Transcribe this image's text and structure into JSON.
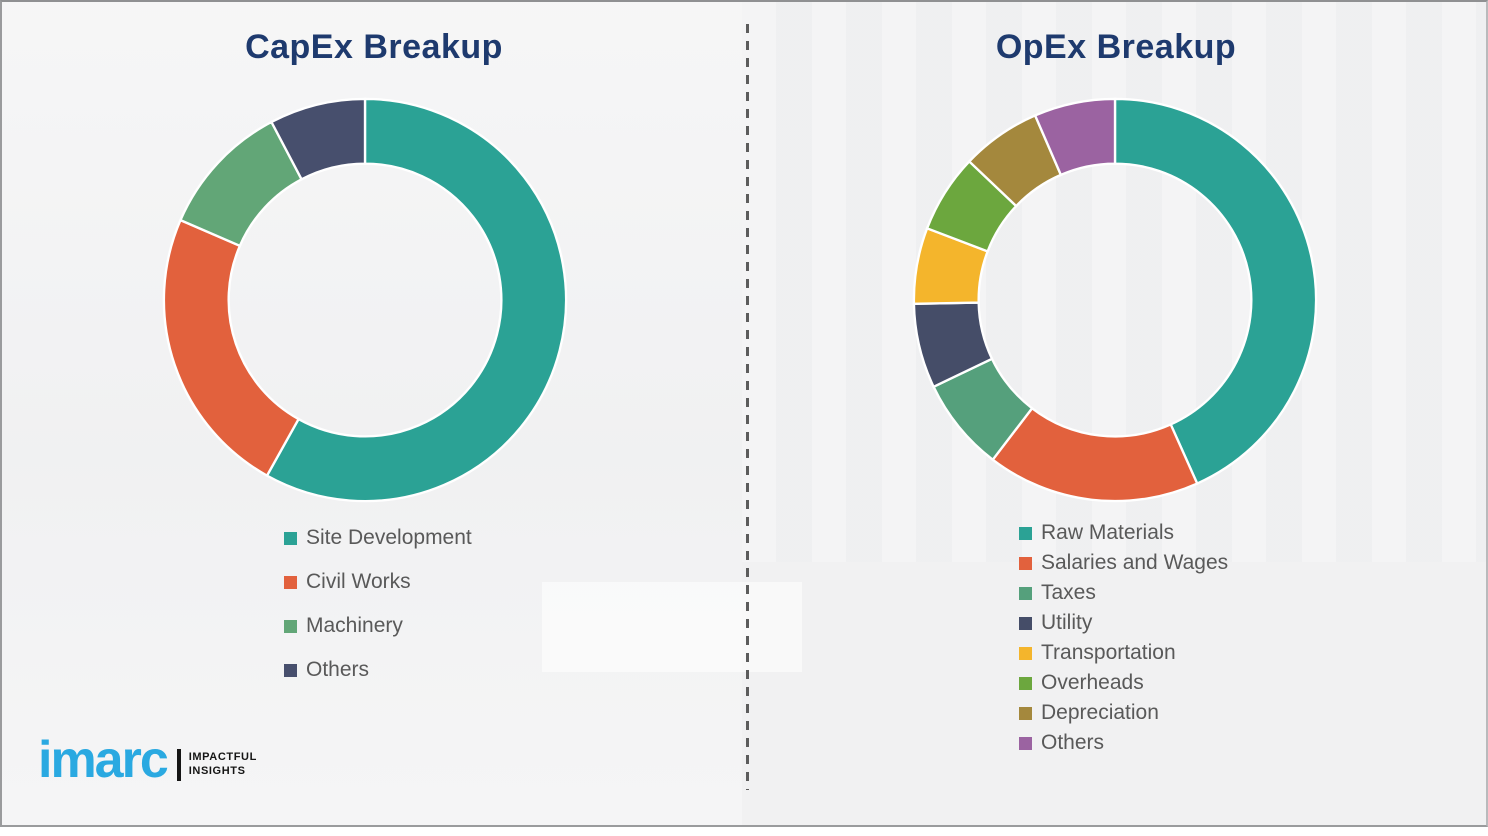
{
  "branding": {
    "logo_text": "imarc",
    "tagline_line1": "IMPACTFUL",
    "tagline_line2": "INSIGHTS",
    "logo_color": "#2aa9e1"
  },
  "colors": {
    "background": "#f1f1f2",
    "title_text": "#1e3a6e",
    "legend_text": "#595959",
    "divider": "#5c5c5c",
    "segment_gap": "#ffffff"
  },
  "chart_data": [
    {
      "type": "pie",
      "subtype": "donut",
      "title": "CapEx Breakup",
      "categories": [
        "Site Development",
        "Civil Works",
        "Machinery",
        "Others"
      ],
      "values": [
        58.1,
        23.4,
        10.8,
        7.7
      ],
      "unit": "%",
      "colors": [
        "#2ba295",
        "#e2613d",
        "#62a677",
        "#474f6d"
      ],
      "start_angle_deg": 0,
      "direction": "clockwise",
      "legend_position": "below-left"
    },
    {
      "type": "pie",
      "subtype": "donut",
      "title": "OpEx Breakup",
      "categories": [
        "Raw Materials",
        "Salaries and Wages",
        "Taxes",
        "Utility",
        "Transportation",
        "Overheads",
        "Depreciation",
        "Others"
      ],
      "values": [
        43.3,
        17.1,
        7.5,
        6.8,
        6.1,
        6.3,
        6.4,
        6.5
      ],
      "unit": "%",
      "colors": [
        "#2ba295",
        "#e2613d",
        "#55a07c",
        "#454d68",
        "#f4b52c",
        "#6ca73e",
        "#a4883d",
        "#9b63a1"
      ],
      "start_angle_deg": 0,
      "direction": "clockwise",
      "legend_position": "below-left"
    }
  ]
}
